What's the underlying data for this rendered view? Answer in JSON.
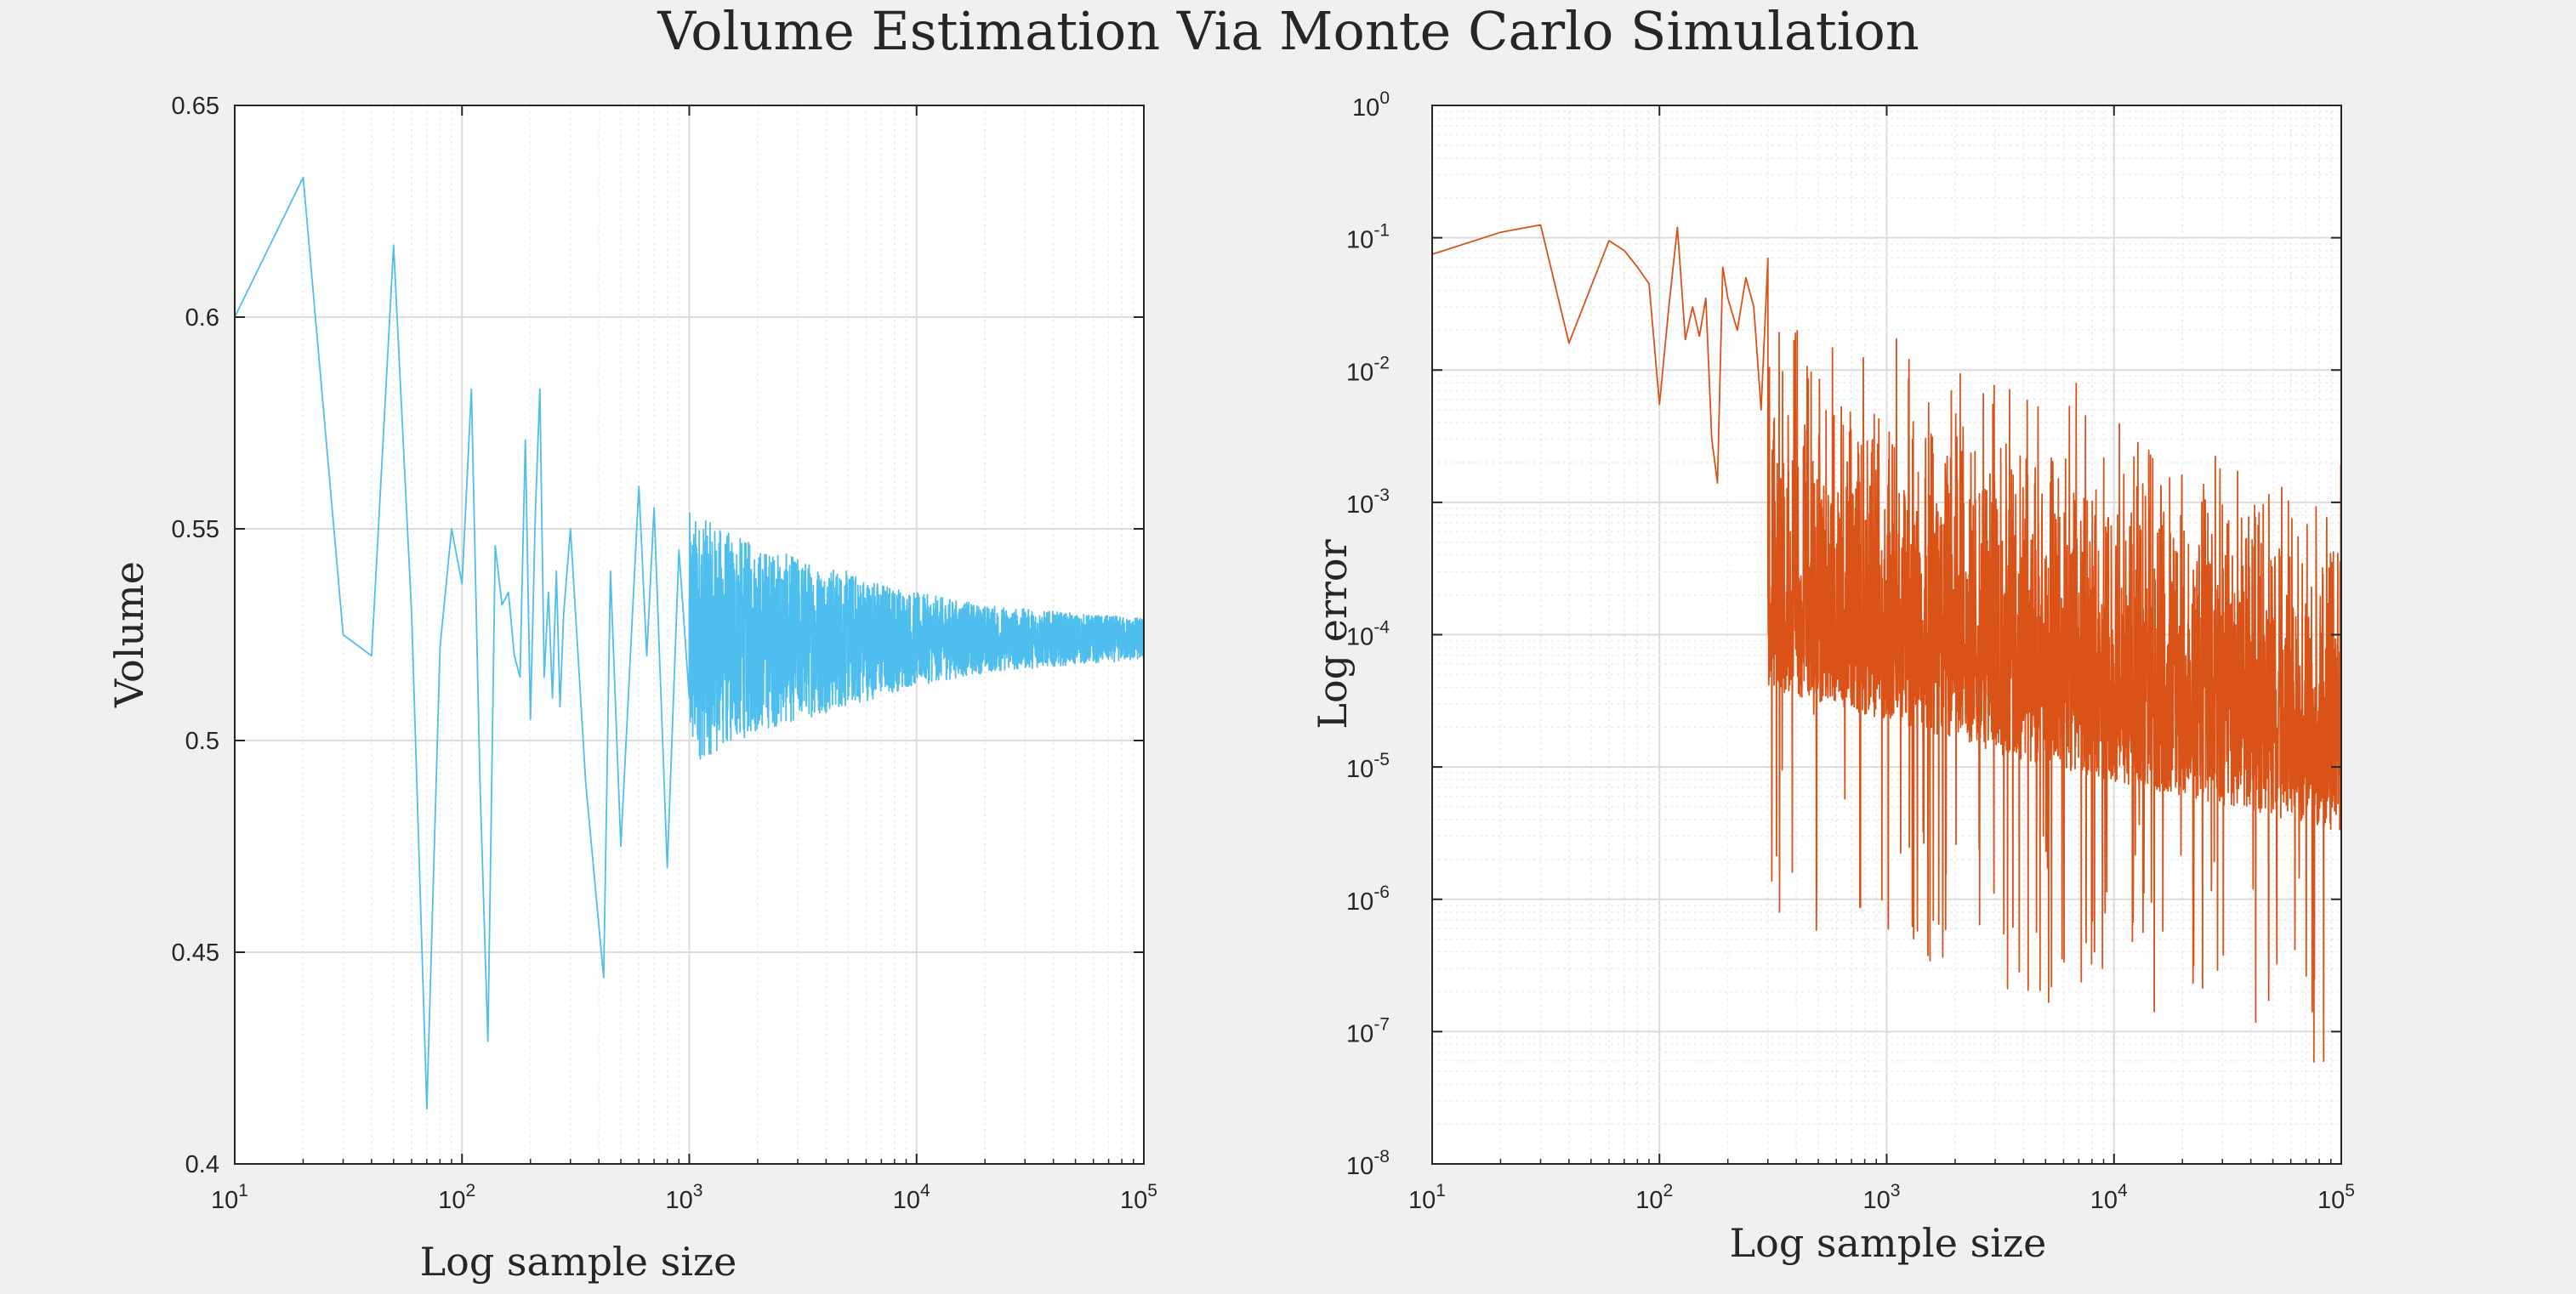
{
  "figure": {
    "title": "Volume Estimation Via Monte Carlo Simulation"
  },
  "chart_data": [
    {
      "type": "line",
      "title": "",
      "xlabel": "Log sample size",
      "ylabel": "Volume",
      "xscale": "log",
      "yscale": "linear",
      "xlim": [
        10,
        100000
      ],
      "ylim": [
        0.4,
        0.65
      ],
      "xtick_labels": [
        "10",
        "10",
        "10",
        "10",
        "10"
      ],
      "xtick_exponents": [
        "1",
        "2",
        "3",
        "4",
        "5"
      ],
      "ytick_labels": [
        "0.4",
        "0.45",
        "0.5",
        "0.55",
        "0.6",
        "0.65"
      ],
      "grid": true,
      "color": "#4dbeee",
      "series": [
        {
          "x": [
            10,
            20,
            30,
            40,
            50,
            60,
            70,
            80,
            90,
            100,
            110,
            120,
            130,
            140,
            150,
            160,
            170,
            180,
            190,
            200,
            210,
            220,
            230,
            240,
            250,
            260,
            270,
            280,
            300,
            350,
            420,
            450,
            500,
            600,
            650,
            700,
            800,
            900,
            1000
          ],
          "y": [
            0.6,
            0.633,
            0.525,
            0.52,
            0.617,
            0.53,
            0.413,
            0.522,
            0.55,
            0.537,
            0.583,
            0.49,
            0.429,
            0.546,
            0.532,
            0.535,
            0.52,
            0.515,
            0.571,
            0.505,
            0.553,
            0.583,
            0.515,
            0.535,
            0.51,
            0.54,
            0.508,
            0.53,
            0.55,
            0.49,
            0.444,
            0.54,
            0.475,
            0.56,
            0.52,
            0.555,
            0.47,
            0.545,
            0.51
          ],
          "noise_envelope": {
            "x": [
              1000,
              2000,
              5000,
              10000,
              20000,
              50000,
              100000
            ],
            "center": [
              0.524,
              0.524,
              0.524,
              0.524,
              0.524,
              0.524,
              0.524
            ],
            "half_width": [
              0.03,
              0.022,
              0.016,
              0.011,
              0.008,
              0.006,
              0.005
            ]
          }
        }
      ]
    },
    {
      "type": "line",
      "title": "",
      "xlabel": "Log sample size",
      "ylabel": "Log error",
      "xscale": "log",
      "yscale": "log",
      "xlim": [
        10,
        100000
      ],
      "ylim": [
        1e-08,
        1
      ],
      "xtick_labels": [
        "10",
        "10",
        "10",
        "10",
        "10"
      ],
      "xtick_exponents": [
        "1",
        "2",
        "3",
        "4",
        "5"
      ],
      "ytick_labels": [
        "10",
        "10",
        "10",
        "10",
        "10",
        "10",
        "10",
        "10",
        "10"
      ],
      "ytick_exponents": [
        "-8",
        "-7",
        "-6",
        "-5",
        "-4",
        "-3",
        "-2",
        "-1",
        "0"
      ],
      "grid": true,
      "color": "#d95319",
      "series": [
        {
          "x": [
            10,
            20,
            30,
            40,
            60,
            70,
            80,
            90,
            100,
            110,
            120,
            130,
            140,
            150,
            160,
            170,
            180,
            190,
            200,
            220,
            240,
            260,
            280,
            300
          ],
          "y": [
            0.075,
            0.11,
            0.125,
            0.016,
            0.095,
            0.08,
            0.06,
            0.045,
            0.0055,
            0.03,
            0.12,
            0.017,
            0.03,
            0.018,
            0.035,
            0.003,
            0.0014,
            0.06,
            0.035,
            0.02,
            0.05,
            0.03,
            0.005,
            0.07
          ],
          "noise_envelope": {
            "x": [
              300,
              1000,
              3000,
              10000,
              30000,
              100000
            ],
            "top": [
              0.06,
              0.035,
              0.02,
              0.012,
              0.008,
              0.005
            ]
          }
        }
      ]
    }
  ]
}
